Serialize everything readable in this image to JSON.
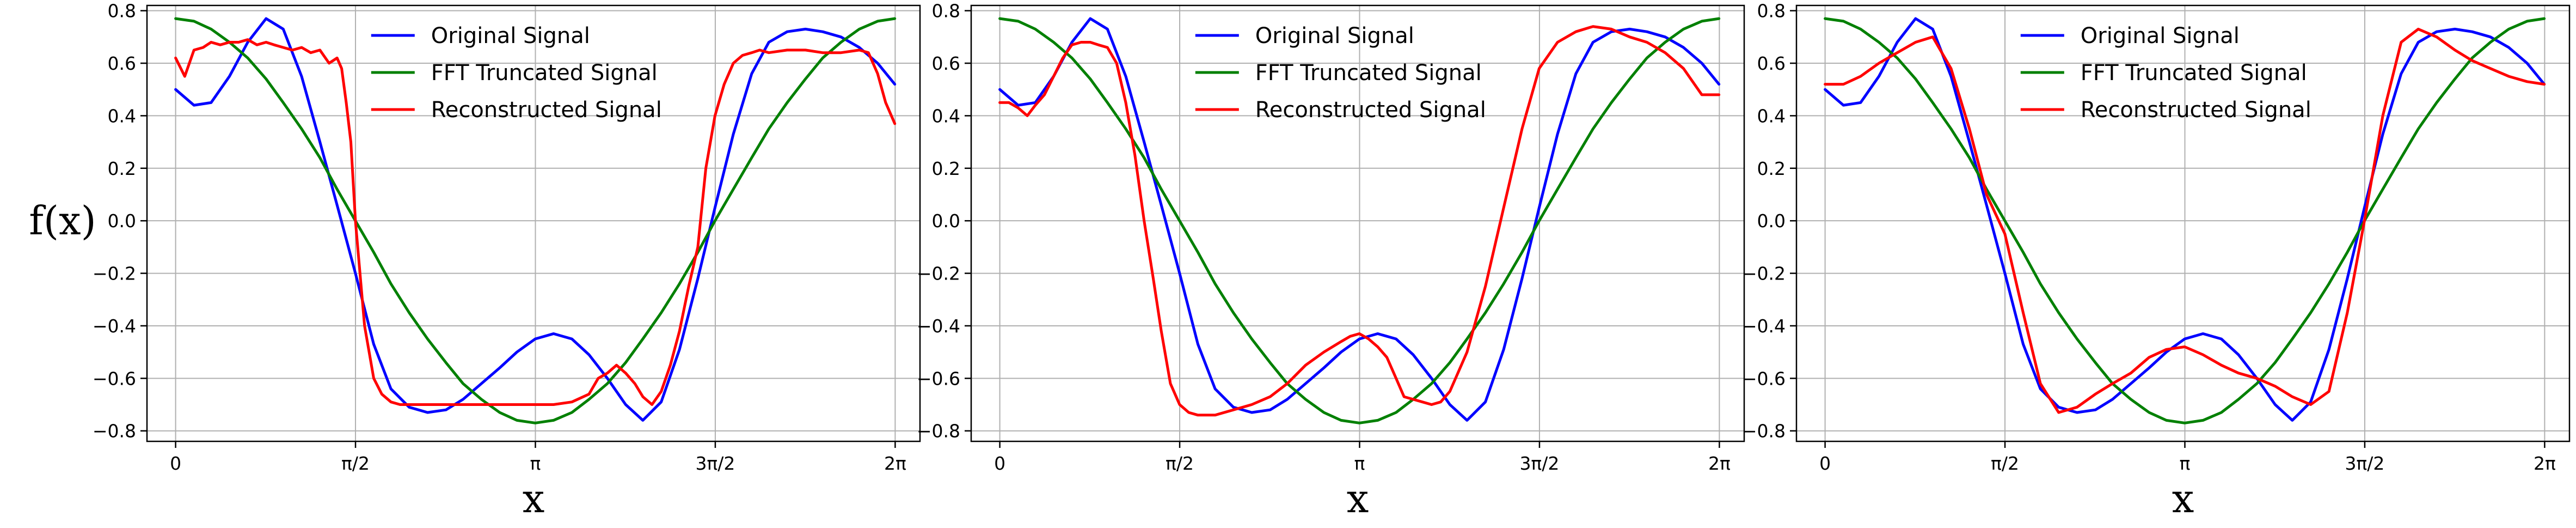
{
  "figure": {
    "ylabel": "f(x)",
    "colors": {
      "original": "#0000ff",
      "fft": "#008000",
      "reconstructed": "#ff0000",
      "grid": "#b0b0b0"
    }
  },
  "chart_data": [
    {
      "type": "line",
      "xlabel": "x",
      "ylabel": "f(x)",
      "xlim": [
        -0.25,
        6.5
      ],
      "ylim": [
        -0.84,
        0.82
      ],
      "xticks": [
        {
          "value": 0,
          "label": "0"
        },
        {
          "value": 1.5708,
          "label": "π/2"
        },
        {
          "value": 3.1416,
          "label": "π"
        },
        {
          "value": 4.7124,
          "label": "3π/2"
        },
        {
          "value": 6.2832,
          "label": "2π"
        }
      ],
      "yticks": [
        0.8,
        0.6,
        0.4,
        0.2,
        0.0,
        -0.2,
        -0.4,
        -0.6,
        -0.8
      ],
      "ytick_labels": [
        "0.8",
        "0.6",
        "0.4",
        "0.2",
        "0.0",
        "−0.2",
        "−0.4",
        "−0.6",
        "−0.8"
      ],
      "grid": true,
      "legend": "top-center",
      "series": [
        {
          "name": "Original Signal",
          "color": "#0000ff",
          "x": [
            0,
            0.16,
            0.31,
            0.47,
            0.63,
            0.79,
            0.94,
            1.1,
            1.26,
            1.41,
            1.57,
            1.73,
            1.88,
            2.04,
            2.2,
            2.36,
            2.51,
            2.67,
            2.83,
            2.98,
            3.14,
            3.3,
            3.46,
            3.61,
            3.77,
            3.93,
            4.08,
            4.24,
            4.4,
            4.56,
            4.71,
            4.87,
            5.03,
            5.18,
            5.34,
            5.5,
            5.65,
            5.81,
            5.97,
            6.13,
            6.28
          ],
          "y": [
            0.5,
            0.44,
            0.45,
            0.55,
            0.68,
            0.77,
            0.73,
            0.55,
            0.3,
            0.06,
            -0.2,
            -0.47,
            -0.64,
            -0.71,
            -0.73,
            -0.72,
            -0.68,
            -0.62,
            -0.56,
            -0.5,
            -0.45,
            -0.43,
            -0.45,
            -0.51,
            -0.6,
            -0.7,
            -0.76,
            -0.69,
            -0.49,
            -0.22,
            0.05,
            0.33,
            0.56,
            0.68,
            0.72,
            0.73,
            0.72,
            0.7,
            0.66,
            0.6,
            0.52
          ]
        },
        {
          "name": "FFT Truncated Signal",
          "color": "#008000",
          "x": [
            0,
            0.16,
            0.31,
            0.47,
            0.63,
            0.79,
            0.94,
            1.1,
            1.26,
            1.41,
            1.57,
            1.73,
            1.88,
            2.04,
            2.2,
            2.36,
            2.51,
            2.67,
            2.83,
            2.98,
            3.14,
            3.3,
            3.46,
            3.61,
            3.77,
            3.93,
            4.08,
            4.24,
            4.4,
            4.56,
            4.71,
            4.87,
            5.03,
            5.18,
            5.34,
            5.5,
            5.65,
            5.81,
            5.97,
            6.13,
            6.28
          ],
          "y": [
            0.77,
            0.76,
            0.73,
            0.68,
            0.62,
            0.54,
            0.45,
            0.35,
            0.24,
            0.12,
            0.0,
            -0.12,
            -0.24,
            -0.35,
            -0.45,
            -0.54,
            -0.62,
            -0.68,
            -0.73,
            -0.76,
            -0.77,
            -0.76,
            -0.73,
            -0.68,
            -0.62,
            -0.54,
            -0.45,
            -0.35,
            -0.24,
            -0.12,
            0.0,
            0.12,
            0.24,
            0.35,
            0.45,
            0.54,
            0.62,
            0.68,
            0.73,
            0.76,
            0.77
          ]
        },
        {
          "name": "Reconstructed Signal",
          "color": "#ff0000",
          "x": [
            0,
            0.08,
            0.16,
            0.24,
            0.31,
            0.39,
            0.47,
            0.55,
            0.63,
            0.71,
            0.79,
            0.86,
            0.94,
            1.02,
            1.1,
            1.18,
            1.26,
            1.34,
            1.41,
            1.45,
            1.49,
            1.53,
            1.57,
            1.61,
            1.65,
            1.73,
            1.8,
            1.88,
            1.96,
            2.04,
            2.2,
            2.36,
            2.51,
            2.67,
            2.83,
            2.98,
            3.14,
            3.3,
            3.46,
            3.61,
            3.69,
            3.77,
            3.85,
            3.93,
            4.01,
            4.08,
            4.16,
            4.24,
            4.32,
            4.4,
            4.48,
            4.56,
            4.63,
            4.71,
            4.79,
            4.87,
            4.95,
            5.03,
            5.1,
            5.18,
            5.34,
            5.5,
            5.65,
            5.81,
            5.97,
            6.05,
            6.13,
            6.2,
            6.28
          ],
          "y": [
            0.62,
            0.55,
            0.65,
            0.66,
            0.68,
            0.67,
            0.68,
            0.68,
            0.69,
            0.67,
            0.68,
            0.67,
            0.66,
            0.65,
            0.66,
            0.64,
            0.65,
            0.6,
            0.62,
            0.58,
            0.45,
            0.3,
            0.0,
            -0.2,
            -0.4,
            -0.6,
            -0.66,
            -0.69,
            -0.7,
            -0.7,
            -0.7,
            -0.7,
            -0.7,
            -0.7,
            -0.7,
            -0.7,
            -0.7,
            -0.7,
            -0.69,
            -0.66,
            -0.6,
            -0.58,
            -0.55,
            -0.58,
            -0.62,
            -0.67,
            -0.7,
            -0.65,
            -0.55,
            -0.42,
            -0.25,
            -0.1,
            0.2,
            0.4,
            0.52,
            0.6,
            0.63,
            0.64,
            0.65,
            0.64,
            0.65,
            0.65,
            0.64,
            0.64,
            0.65,
            0.64,
            0.56,
            0.45,
            0.37
          ]
        }
      ]
    },
    {
      "type": "line",
      "xlabel": "x",
      "ylabel": "",
      "xlim": [
        -0.25,
        6.5
      ],
      "ylim": [
        -0.84,
        0.82
      ],
      "xticks": [
        {
          "value": 0,
          "label": "0"
        },
        {
          "value": 1.5708,
          "label": "π/2"
        },
        {
          "value": 3.1416,
          "label": "π"
        },
        {
          "value": 4.7124,
          "label": "3π/2"
        },
        {
          "value": 6.2832,
          "label": "2π"
        }
      ],
      "yticks": [
        0.8,
        0.6,
        0.4,
        0.2,
        0.0,
        -0.2,
        -0.4,
        -0.6,
        -0.8
      ],
      "ytick_labels": [
        "0.8",
        "0.6",
        "0.4",
        "0.2",
        "0.0",
        "−0.2",
        "−0.4",
        "−0.6",
        "−0.8"
      ],
      "grid": true,
      "legend": "top-center",
      "series": [
        {
          "name": "Original Signal",
          "color": "#0000ff",
          "x": [
            0,
            0.16,
            0.31,
            0.47,
            0.63,
            0.79,
            0.94,
            1.1,
            1.26,
            1.41,
            1.57,
            1.73,
            1.88,
            2.04,
            2.2,
            2.36,
            2.51,
            2.67,
            2.83,
            2.98,
            3.14,
            3.3,
            3.46,
            3.61,
            3.77,
            3.93,
            4.08,
            4.24,
            4.4,
            4.56,
            4.71,
            4.87,
            5.03,
            5.18,
            5.34,
            5.5,
            5.65,
            5.81,
            5.97,
            6.13,
            6.28
          ],
          "y": [
            0.5,
            0.44,
            0.45,
            0.55,
            0.68,
            0.77,
            0.73,
            0.55,
            0.3,
            0.06,
            -0.2,
            -0.47,
            -0.64,
            -0.71,
            -0.73,
            -0.72,
            -0.68,
            -0.62,
            -0.56,
            -0.5,
            -0.45,
            -0.43,
            -0.45,
            -0.51,
            -0.6,
            -0.7,
            -0.76,
            -0.69,
            -0.49,
            -0.22,
            0.05,
            0.33,
            0.56,
            0.68,
            0.72,
            0.73,
            0.72,
            0.7,
            0.66,
            0.6,
            0.52
          ]
        },
        {
          "name": "FFT Truncated Signal",
          "color": "#008000",
          "x": [
            0,
            0.16,
            0.31,
            0.47,
            0.63,
            0.79,
            0.94,
            1.1,
            1.26,
            1.41,
            1.57,
            1.73,
            1.88,
            2.04,
            2.2,
            2.36,
            2.51,
            2.67,
            2.83,
            2.98,
            3.14,
            3.3,
            3.46,
            3.61,
            3.77,
            3.93,
            4.08,
            4.24,
            4.4,
            4.56,
            4.71,
            4.87,
            5.03,
            5.18,
            5.34,
            5.5,
            5.65,
            5.81,
            5.97,
            6.13,
            6.28
          ],
          "y": [
            0.77,
            0.76,
            0.73,
            0.68,
            0.62,
            0.54,
            0.45,
            0.35,
            0.24,
            0.12,
            0.0,
            -0.12,
            -0.24,
            -0.35,
            -0.45,
            -0.54,
            -0.62,
            -0.68,
            -0.73,
            -0.76,
            -0.77,
            -0.76,
            -0.73,
            -0.68,
            -0.62,
            -0.54,
            -0.45,
            -0.35,
            -0.24,
            -0.12,
            0.0,
            0.12,
            0.24,
            0.35,
            0.45,
            0.54,
            0.62,
            0.68,
            0.73,
            0.76,
            0.77
          ]
        },
        {
          "name": "Reconstructed Signal",
          "color": "#ff0000",
          "x": [
            0,
            0.08,
            0.16,
            0.24,
            0.31,
            0.39,
            0.47,
            0.55,
            0.63,
            0.71,
            0.79,
            0.86,
            0.94,
            1.02,
            1.1,
            1.18,
            1.26,
            1.34,
            1.41,
            1.49,
            1.57,
            1.65,
            1.73,
            1.88,
            2.04,
            2.2,
            2.36,
            2.51,
            2.67,
            2.83,
            2.98,
            3.06,
            3.14,
            3.22,
            3.3,
            3.38,
            3.46,
            3.53,
            3.61,
            3.69,
            3.77,
            3.85,
            3.93,
            4.08,
            4.24,
            4.4,
            4.56,
            4.71,
            4.87,
            5.03,
            5.18,
            5.34,
            5.5,
            5.65,
            5.81,
            5.97,
            6.13,
            6.28
          ],
          "y": [
            0.45,
            0.45,
            0.43,
            0.4,
            0.44,
            0.48,
            0.55,
            0.62,
            0.67,
            0.68,
            0.68,
            0.67,
            0.66,
            0.6,
            0.45,
            0.25,
            0.0,
            -0.22,
            -0.42,
            -0.62,
            -0.7,
            -0.73,
            -0.74,
            -0.74,
            -0.72,
            -0.7,
            -0.67,
            -0.62,
            -0.55,
            -0.5,
            -0.46,
            -0.44,
            -0.43,
            -0.45,
            -0.48,
            -0.52,
            -0.6,
            -0.67,
            -0.68,
            -0.69,
            -0.7,
            -0.69,
            -0.65,
            -0.5,
            -0.25,
            0.05,
            0.35,
            0.58,
            0.68,
            0.72,
            0.74,
            0.73,
            0.7,
            0.68,
            0.64,
            0.58,
            0.48,
            0.48
          ]
        }
      ]
    },
    {
      "type": "line",
      "xlabel": "x",
      "ylabel": "",
      "xlim": [
        -0.25,
        6.5
      ],
      "ylim": [
        -0.84,
        0.82
      ],
      "xticks": [
        {
          "value": 0,
          "label": "0"
        },
        {
          "value": 1.5708,
          "label": "π/2"
        },
        {
          "value": 3.1416,
          "label": "π"
        },
        {
          "value": 4.7124,
          "label": "3π/2"
        },
        {
          "value": 6.2832,
          "label": "2π"
        }
      ],
      "yticks": [
        0.8,
        0.6,
        0.4,
        0.2,
        0.0,
        -0.2,
        -0.4,
        -0.6,
        -0.8
      ],
      "ytick_labels": [
        "0.8",
        "0.6",
        "0.4",
        "0.2",
        "0.0",
        "−0.2",
        "−0.4",
        "−0.6",
        "−0.8"
      ],
      "grid": true,
      "legend": "top-center",
      "series": [
        {
          "name": "Original Signal",
          "color": "#0000ff",
          "x": [
            0,
            0.16,
            0.31,
            0.47,
            0.63,
            0.79,
            0.94,
            1.1,
            1.26,
            1.41,
            1.57,
            1.73,
            1.88,
            2.04,
            2.2,
            2.36,
            2.51,
            2.67,
            2.83,
            2.98,
            3.14,
            3.3,
            3.46,
            3.61,
            3.77,
            3.93,
            4.08,
            4.24,
            4.4,
            4.56,
            4.71,
            4.87,
            5.03,
            5.18,
            5.34,
            5.5,
            5.65,
            5.81,
            5.97,
            6.13,
            6.28
          ],
          "y": [
            0.5,
            0.44,
            0.45,
            0.55,
            0.68,
            0.77,
            0.73,
            0.55,
            0.3,
            0.06,
            -0.2,
            -0.47,
            -0.64,
            -0.71,
            -0.73,
            -0.72,
            -0.68,
            -0.62,
            -0.56,
            -0.5,
            -0.45,
            -0.43,
            -0.45,
            -0.51,
            -0.6,
            -0.7,
            -0.76,
            -0.69,
            -0.49,
            -0.22,
            0.05,
            0.33,
            0.56,
            0.68,
            0.72,
            0.73,
            0.72,
            0.7,
            0.66,
            0.6,
            0.52
          ]
        },
        {
          "name": "FFT Truncated Signal",
          "color": "#008000",
          "x": [
            0,
            0.16,
            0.31,
            0.47,
            0.63,
            0.79,
            0.94,
            1.1,
            1.26,
            1.41,
            1.57,
            1.73,
            1.88,
            2.04,
            2.2,
            2.36,
            2.51,
            2.67,
            2.83,
            2.98,
            3.14,
            3.3,
            3.46,
            3.61,
            3.77,
            3.93,
            4.08,
            4.24,
            4.4,
            4.56,
            4.71,
            4.87,
            5.03,
            5.18,
            5.34,
            5.5,
            5.65,
            5.81,
            5.97,
            6.13,
            6.28
          ],
          "y": [
            0.77,
            0.76,
            0.73,
            0.68,
            0.62,
            0.54,
            0.45,
            0.35,
            0.24,
            0.12,
            0.0,
            -0.12,
            -0.24,
            -0.35,
            -0.45,
            -0.54,
            -0.62,
            -0.68,
            -0.73,
            -0.76,
            -0.77,
            -0.76,
            -0.73,
            -0.68,
            -0.62,
            -0.54,
            -0.45,
            -0.35,
            -0.24,
            -0.12,
            0.0,
            0.12,
            0.24,
            0.35,
            0.45,
            0.54,
            0.62,
            0.68,
            0.73,
            0.76,
            0.77
          ]
        },
        {
          "name": "Reconstructed Signal",
          "color": "#ff0000",
          "x": [
            0,
            0.16,
            0.31,
            0.47,
            0.63,
            0.79,
            0.94,
            1.1,
            1.26,
            1.41,
            1.57,
            1.73,
            1.88,
            2.04,
            2.2,
            2.36,
            2.51,
            2.67,
            2.83,
            2.98,
            3.14,
            3.3,
            3.46,
            3.61,
            3.77,
            3.93,
            4.08,
            4.24,
            4.4,
            4.56,
            4.71,
            4.87,
            5.03,
            5.18,
            5.34,
            5.5,
            5.65,
            5.81,
            5.97,
            6.13,
            6.28
          ],
          "y": [
            0.52,
            0.52,
            0.55,
            0.6,
            0.64,
            0.68,
            0.7,
            0.58,
            0.35,
            0.1,
            -0.05,
            -0.35,
            -0.62,
            -0.73,
            -0.71,
            -0.66,
            -0.62,
            -0.58,
            -0.52,
            -0.49,
            -0.48,
            -0.51,
            -0.55,
            -0.58,
            -0.6,
            -0.63,
            -0.67,
            -0.7,
            -0.65,
            -0.35,
            0.0,
            0.4,
            0.68,
            0.73,
            0.7,
            0.65,
            0.61,
            0.58,
            0.55,
            0.53,
            0.52
          ]
        }
      ]
    }
  ]
}
